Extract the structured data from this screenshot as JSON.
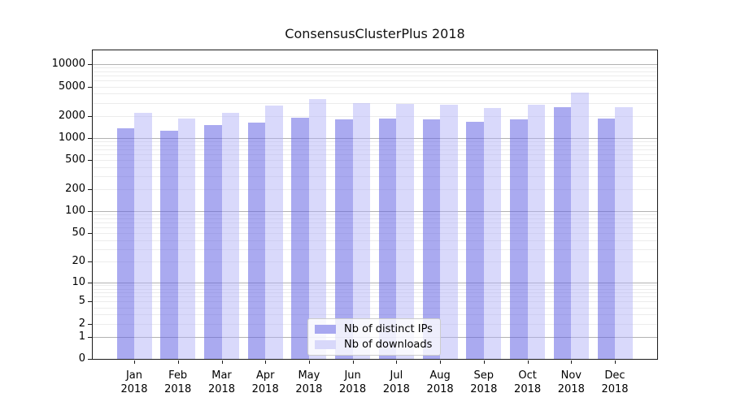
{
  "title": "ConsensusClusterPlus 2018",
  "chart_data": {
    "type": "bar",
    "title": "ConsensusClusterPlus 2018",
    "categories": [
      "Jan 2018",
      "Feb 2018",
      "Mar 2018",
      "Apr 2018",
      "May 2018",
      "Jun 2018",
      "Jul 2018",
      "Aug 2018",
      "Sep 2018",
      "Oct 2018",
      "Nov 2018",
      "Dec 2018"
    ],
    "series": [
      {
        "name": "Nb of distinct IPs",
        "values": [
          1370,
          1245,
          1500,
          1630,
          1880,
          1800,
          1850,
          1775,
          1665,
          1780,
          2620,
          1850
        ],
        "color_solid": "#a8a8f0",
        "color_rgba": "rgba(100,100,228,0.55)"
      },
      {
        "name": "Nb of downloads",
        "values": [
          2190,
          1820,
          2170,
          2770,
          3340,
          2940,
          2900,
          2845,
          2555,
          2820,
          4130,
          2620
        ],
        "color_solid": "#d8d8fa",
        "color_rgba": "rgba(175,175,247,0.48)"
      }
    ],
    "y_scale": "log10(1+y)",
    "y_ticks": [
      0,
      1,
      2,
      5,
      10,
      20,
      50,
      100,
      200,
      500,
      1000,
      2000,
      5000,
      10000
    ],
    "y_major_gridlines": [
      1,
      10,
      100,
      1000,
      10000
    ],
    "ylim": [
      0,
      16000
    ],
    "xlabel": "",
    "ylabel": "",
    "grid": "horizontal",
    "legend_position": "lower-center-inside"
  },
  "colors": {
    "background": "#ffffff",
    "axis": "#1a1a1a",
    "grid_major": "#b2b2b2",
    "grid_minor": "#ececec",
    "legend_border": "#cccccc",
    "legend_bg": "rgba(255,255,255,0.8)"
  }
}
